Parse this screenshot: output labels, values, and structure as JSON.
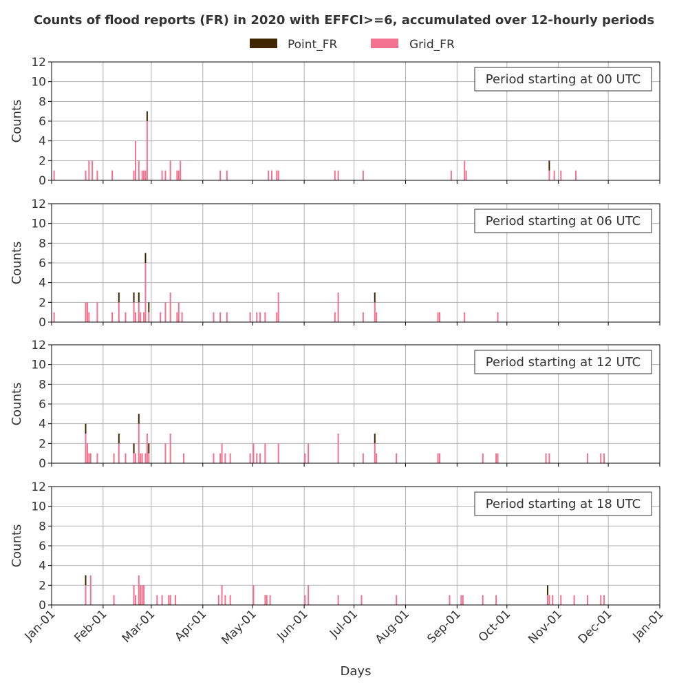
{
  "chart_data": {
    "type": "bar",
    "title": "Counts of flood reports (FR) in 2020 with EFFCI>=6, accumulated over 12-hourly periods",
    "xlabel": "Days",
    "ylabel": "Counts",
    "year": 2020,
    "ylim": [
      0,
      12
    ],
    "yticks": [
      0,
      2,
      4,
      6,
      8,
      10,
      12
    ],
    "xlim": [
      "2020-01-01",
      "2021-01-01"
    ],
    "x_tick_labels": [
      "Jan-01",
      "Feb-01",
      "Mar-01",
      "Apr-01",
      "May-01",
      "Jun-01",
      "Jul-01",
      "Aug-01",
      "Sep-01",
      "Oct-01",
      "Nov-01",
      "Dec-01",
      "Jan-01"
    ],
    "x_tick_dates": [
      "2020-01-01",
      "2020-02-01",
      "2020-03-01",
      "2020-04-01",
      "2020-05-01",
      "2020-06-01",
      "2020-07-01",
      "2020-08-01",
      "2020-09-01",
      "2020-10-01",
      "2020-11-01",
      "2020-12-01",
      "2021-01-01"
    ],
    "grid": true,
    "stacked": true,
    "legend": [
      {
        "name": "Point_FR",
        "color": "#3d2600"
      },
      {
        "name": "Grid_FR",
        "color": "#f2728f"
      }
    ],
    "legend_position": "top-center",
    "panels": [
      {
        "label": "Period starting at 00 UTC",
        "bars": [
          {
            "date": "2020-01-02",
            "grid": 1,
            "point": 0
          },
          {
            "date": "2020-01-21",
            "grid": 1,
            "point": 0
          },
          {
            "date": "2020-01-23",
            "grid": 2,
            "point": 0
          },
          {
            "date": "2020-01-25",
            "grid": 2,
            "point": 0
          },
          {
            "date": "2020-01-28",
            "grid": 1,
            "point": 0
          },
          {
            "date": "2020-02-06",
            "grid": 1,
            "point": 0
          },
          {
            "date": "2020-02-19",
            "grid": 1,
            "point": 0
          },
          {
            "date": "2020-02-20",
            "grid": 4,
            "point": 0
          },
          {
            "date": "2020-02-22",
            "grid": 2,
            "point": 0
          },
          {
            "date": "2020-02-24",
            "grid": 1,
            "point": 0
          },
          {
            "date": "2020-02-25",
            "grid": 1,
            "point": 0
          },
          {
            "date": "2020-02-26",
            "grid": 1,
            "point": 0
          },
          {
            "date": "2020-02-27",
            "grid": 6,
            "point": 1
          },
          {
            "date": "2020-03-07",
            "grid": 1,
            "point": 0
          },
          {
            "date": "2020-03-09",
            "grid": 1,
            "point": 0
          },
          {
            "date": "2020-03-12",
            "grid": 2,
            "point": 0
          },
          {
            "date": "2020-03-16",
            "grid": 1,
            "point": 0
          },
          {
            "date": "2020-03-17",
            "grid": 1,
            "point": 0
          },
          {
            "date": "2020-03-18",
            "grid": 2,
            "point": 0
          },
          {
            "date": "2020-04-11",
            "grid": 1,
            "point": 0
          },
          {
            "date": "2020-04-15",
            "grid": 1,
            "point": 0
          },
          {
            "date": "2020-05-10",
            "grid": 1,
            "point": 0
          },
          {
            "date": "2020-05-12",
            "grid": 1,
            "point": 0
          },
          {
            "date": "2020-05-15",
            "grid": 1,
            "point": 0
          },
          {
            "date": "2020-05-16",
            "grid": 1,
            "point": 0
          },
          {
            "date": "2020-06-19",
            "grid": 1,
            "point": 0
          },
          {
            "date": "2020-06-21",
            "grid": 1,
            "point": 0
          },
          {
            "date": "2020-07-06",
            "grid": 1,
            "point": 0
          },
          {
            "date": "2020-08-28",
            "grid": 1,
            "point": 0
          },
          {
            "date": "2020-09-05",
            "grid": 2,
            "point": 0
          },
          {
            "date": "2020-09-06",
            "grid": 1,
            "point": 0
          },
          {
            "date": "2020-10-26",
            "grid": 1,
            "point": 1
          },
          {
            "date": "2020-10-29",
            "grid": 1,
            "point": 0
          },
          {
            "date": "2020-11-02",
            "grid": 1,
            "point": 0
          },
          {
            "date": "2020-11-11",
            "grid": 1,
            "point": 0
          }
        ]
      },
      {
        "label": "Period starting at 06 UTC",
        "bars": [
          {
            "date": "2020-01-02",
            "grid": 1,
            "point": 0
          },
          {
            "date": "2020-01-21",
            "grid": 2,
            "point": 0
          },
          {
            "date": "2020-01-22",
            "grid": 2,
            "point": 0
          },
          {
            "date": "2020-01-23",
            "grid": 1,
            "point": 0
          },
          {
            "date": "2020-01-28",
            "grid": 2,
            "point": 0
          },
          {
            "date": "2020-02-06",
            "grid": 1,
            "point": 0
          },
          {
            "date": "2020-02-10",
            "grid": 2,
            "point": 1
          },
          {
            "date": "2020-02-14",
            "grid": 1,
            "point": 0
          },
          {
            "date": "2020-02-19",
            "grid": 2,
            "point": 1
          },
          {
            "date": "2020-02-20",
            "grid": 1,
            "point": 0
          },
          {
            "date": "2020-02-22",
            "grid": 2,
            "point": 1
          },
          {
            "date": "2020-02-23",
            "grid": 1,
            "point": 0
          },
          {
            "date": "2020-02-25",
            "grid": 1,
            "point": 0
          },
          {
            "date": "2020-02-26",
            "grid": 6,
            "point": 1
          },
          {
            "date": "2020-02-28",
            "grid": 1,
            "point": 1
          },
          {
            "date": "2020-03-06",
            "grid": 1,
            "point": 0
          },
          {
            "date": "2020-03-09",
            "grid": 2,
            "point": 0
          },
          {
            "date": "2020-03-12",
            "grid": 3,
            "point": 0
          },
          {
            "date": "2020-03-16",
            "grid": 1,
            "point": 0
          },
          {
            "date": "2020-03-17",
            "grid": 2,
            "point": 0
          },
          {
            "date": "2020-03-19",
            "grid": 1,
            "point": 0
          },
          {
            "date": "2020-04-07",
            "grid": 1,
            "point": 0
          },
          {
            "date": "2020-04-11",
            "grid": 1,
            "point": 0
          },
          {
            "date": "2020-04-15",
            "grid": 1,
            "point": 0
          },
          {
            "date": "2020-04-29",
            "grid": 1,
            "point": 0
          },
          {
            "date": "2020-05-03",
            "grid": 1,
            "point": 0
          },
          {
            "date": "2020-05-05",
            "grid": 1,
            "point": 0
          },
          {
            "date": "2020-05-08",
            "grid": 1,
            "point": 0
          },
          {
            "date": "2020-05-15",
            "grid": 1,
            "point": 0
          },
          {
            "date": "2020-05-16",
            "grid": 3,
            "point": 0
          },
          {
            "date": "2020-06-19",
            "grid": 1,
            "point": 0
          },
          {
            "date": "2020-06-21",
            "grid": 3,
            "point": 0
          },
          {
            "date": "2020-07-06",
            "grid": 1,
            "point": 0
          },
          {
            "date": "2020-07-13",
            "grid": 2,
            "point": 1
          },
          {
            "date": "2020-07-14",
            "grid": 1,
            "point": 0
          },
          {
            "date": "2020-08-20",
            "grid": 1,
            "point": 0
          },
          {
            "date": "2020-08-21",
            "grid": 1,
            "point": 0
          },
          {
            "date": "2020-09-05",
            "grid": 1,
            "point": 0
          },
          {
            "date": "2020-09-25",
            "grid": 1,
            "point": 0
          }
        ]
      },
      {
        "label": "Period starting at 12 UTC",
        "bars": [
          {
            "date": "2020-01-21",
            "grid": 3,
            "point": 1
          },
          {
            "date": "2020-01-22",
            "grid": 2,
            "point": 0
          },
          {
            "date": "2020-01-23",
            "grid": 1,
            "point": 0
          },
          {
            "date": "2020-01-24",
            "grid": 1,
            "point": 0
          },
          {
            "date": "2020-01-28",
            "grid": 1,
            "point": 0
          },
          {
            "date": "2020-02-07",
            "grid": 1,
            "point": 0
          },
          {
            "date": "2020-02-10",
            "grid": 2,
            "point": 1
          },
          {
            "date": "2020-02-14",
            "grid": 1,
            "point": 0
          },
          {
            "date": "2020-02-19",
            "grid": 1,
            "point": 1
          },
          {
            "date": "2020-02-20",
            "grid": 1,
            "point": 0
          },
          {
            "date": "2020-02-22",
            "grid": 4,
            "point": 1
          },
          {
            "date": "2020-02-23",
            "grid": 1,
            "point": 0
          },
          {
            "date": "2020-02-24",
            "grid": 1,
            "point": 0
          },
          {
            "date": "2020-02-26",
            "grid": 1,
            "point": 0
          },
          {
            "date": "2020-02-27",
            "grid": 3,
            "point": 0
          },
          {
            "date": "2020-02-28",
            "grid": 1,
            "point": 1
          },
          {
            "date": "2020-03-09",
            "grid": 2,
            "point": 0
          },
          {
            "date": "2020-03-12",
            "grid": 3,
            "point": 0
          },
          {
            "date": "2020-03-20",
            "grid": 1,
            "point": 0
          },
          {
            "date": "2020-04-07",
            "grid": 1,
            "point": 0
          },
          {
            "date": "2020-04-11",
            "grid": 1,
            "point": 0
          },
          {
            "date": "2020-04-12",
            "grid": 2,
            "point": 0
          },
          {
            "date": "2020-04-14",
            "grid": 1,
            "point": 0
          },
          {
            "date": "2020-04-17",
            "grid": 1,
            "point": 0
          },
          {
            "date": "2020-04-29",
            "grid": 1,
            "point": 0
          },
          {
            "date": "2020-05-01",
            "grid": 2,
            "point": 0
          },
          {
            "date": "2020-05-03",
            "grid": 1,
            "point": 0
          },
          {
            "date": "2020-05-05",
            "grid": 1,
            "point": 0
          },
          {
            "date": "2020-05-08",
            "grid": 2,
            "point": 0
          },
          {
            "date": "2020-05-16",
            "grid": 2,
            "point": 0
          },
          {
            "date": "2020-06-01",
            "grid": 1,
            "point": 0
          },
          {
            "date": "2020-06-03",
            "grid": 2,
            "point": 0
          },
          {
            "date": "2020-06-21",
            "grid": 3,
            "point": 0
          },
          {
            "date": "2020-07-06",
            "grid": 1,
            "point": 0
          },
          {
            "date": "2020-07-13",
            "grid": 2,
            "point": 1
          },
          {
            "date": "2020-07-14",
            "grid": 1,
            "point": 0
          },
          {
            "date": "2020-07-26",
            "grid": 1,
            "point": 0
          },
          {
            "date": "2020-08-20",
            "grid": 1,
            "point": 0
          },
          {
            "date": "2020-08-21",
            "grid": 1,
            "point": 0
          },
          {
            "date": "2020-09-16",
            "grid": 1,
            "point": 0
          },
          {
            "date": "2020-09-24",
            "grid": 1,
            "point": 0
          },
          {
            "date": "2020-09-25",
            "grid": 1,
            "point": 0
          },
          {
            "date": "2020-10-24",
            "grid": 1,
            "point": 0
          },
          {
            "date": "2020-10-26",
            "grid": 1,
            "point": 0
          },
          {
            "date": "2020-11-18",
            "grid": 1,
            "point": 0
          },
          {
            "date": "2020-11-26",
            "grid": 1,
            "point": 0
          },
          {
            "date": "2020-11-28",
            "grid": 1,
            "point": 0
          }
        ]
      },
      {
        "label": "Period starting at 18 UTC",
        "bars": [
          {
            "date": "2020-01-21",
            "grid": 2,
            "point": 1
          },
          {
            "date": "2020-01-24",
            "grid": 3,
            "point": 0
          },
          {
            "date": "2020-02-07",
            "grid": 1,
            "point": 0
          },
          {
            "date": "2020-02-19",
            "grid": 2,
            "point": 0
          },
          {
            "date": "2020-02-20",
            "grid": 1,
            "point": 0
          },
          {
            "date": "2020-02-22",
            "grid": 3,
            "point": 0
          },
          {
            "date": "2020-02-23",
            "grid": 2,
            "point": 0
          },
          {
            "date": "2020-02-24",
            "grid": 2,
            "point": 0
          },
          {
            "date": "2020-02-25",
            "grid": 2,
            "point": 0
          },
          {
            "date": "2020-03-04",
            "grid": 1,
            "point": 0
          },
          {
            "date": "2020-03-07",
            "grid": 1,
            "point": 0
          },
          {
            "date": "2020-03-11",
            "grid": 1,
            "point": 0
          },
          {
            "date": "2020-03-12",
            "grid": 1,
            "point": 0
          },
          {
            "date": "2020-03-15",
            "grid": 1,
            "point": 0
          },
          {
            "date": "2020-04-10",
            "grid": 1,
            "point": 0
          },
          {
            "date": "2020-04-12",
            "grid": 2,
            "point": 0
          },
          {
            "date": "2020-04-14",
            "grid": 1,
            "point": 0
          },
          {
            "date": "2020-04-17",
            "grid": 1,
            "point": 0
          },
          {
            "date": "2020-05-01",
            "grid": 2,
            "point": 0
          },
          {
            "date": "2020-05-08",
            "grid": 1,
            "point": 0
          },
          {
            "date": "2020-05-09",
            "grid": 1,
            "point": 0
          },
          {
            "date": "2020-05-11",
            "grid": 1,
            "point": 0
          },
          {
            "date": "2020-06-01",
            "grid": 1,
            "point": 0
          },
          {
            "date": "2020-06-03",
            "grid": 2,
            "point": 0
          },
          {
            "date": "2020-06-21",
            "grid": 1,
            "point": 0
          },
          {
            "date": "2020-07-05",
            "grid": 1,
            "point": 0
          },
          {
            "date": "2020-07-26",
            "grid": 1,
            "point": 0
          },
          {
            "date": "2020-08-27",
            "grid": 1,
            "point": 0
          },
          {
            "date": "2020-09-03",
            "grid": 1,
            "point": 0
          },
          {
            "date": "2020-09-04",
            "grid": 1,
            "point": 0
          },
          {
            "date": "2020-09-16",
            "grid": 1,
            "point": 0
          },
          {
            "date": "2020-09-24",
            "grid": 1,
            "point": 0
          },
          {
            "date": "2020-10-25",
            "grid": 1,
            "point": 1
          },
          {
            "date": "2020-10-26",
            "grid": 1,
            "point": 0
          },
          {
            "date": "2020-10-28",
            "grid": 1,
            "point": 0
          },
          {
            "date": "2020-11-02",
            "grid": 1,
            "point": 0
          },
          {
            "date": "2020-11-10",
            "grid": 1,
            "point": 0
          },
          {
            "date": "2020-11-18",
            "grid": 1,
            "point": 0
          },
          {
            "date": "2020-11-26",
            "grid": 1,
            "point": 0
          },
          {
            "date": "2020-11-28",
            "grid": 1,
            "point": 0
          }
        ]
      }
    ]
  }
}
